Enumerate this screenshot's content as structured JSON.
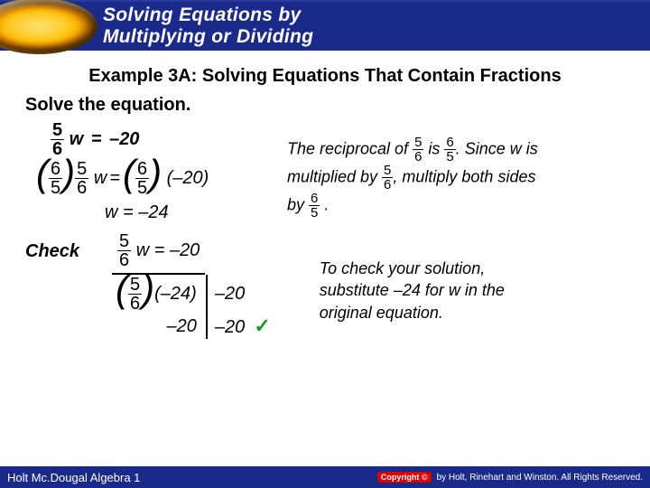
{
  "header": {
    "title_line1": "Solving Equations by",
    "title_line2": "Multiplying or Dividing"
  },
  "example": {
    "heading": "Example 3A: Solving Equations That Contain Fractions",
    "instruction": "Solve the equation."
  },
  "eq": {
    "five": "5",
    "six": "6",
    "w": "w",
    "eq": "=",
    "neg20": "20",
    "neg24": "24",
    "step3_prefix": "w = –"
  },
  "explain": {
    "t1": "The reciprocal of ",
    "t2": " is ",
    "t3": ". Since w is",
    "t4": "multiplied by ",
    "t5": ", multiply both sides",
    "t6": "by ",
    "t7": " ."
  },
  "check": {
    "label": "Check",
    "r2_left_num": "24",
    "r2_right": "20",
    "r3_left": "20",
    "r3_right": "20",
    "explain1": "To check your solution,",
    "explain2a": "substitute ",
    "explain2_num": "24",
    "explain2b": " for w in the",
    "explain3": "original equation."
  },
  "footer": {
    "left": "Holt Mc.Dougal Algebra 1",
    "copyright_label": "Copyright ©",
    "rights": "by Holt, Rinehart and Winston. All Rights Reserved."
  },
  "colors": {
    "header_bg": "#1a2a8a",
    "tick": "#1a9a1a"
  }
}
